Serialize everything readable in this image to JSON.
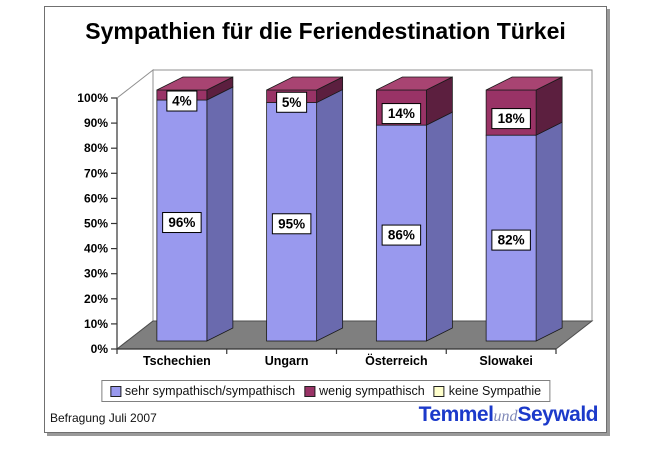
{
  "slide": {
    "title": "Sympathien für die Feriendestination Türkei",
    "footer_note": "Befragung Juli 2007",
    "logo": {
      "part1": "Temmel",
      "part2": "und",
      "part3": "Seywald"
    }
  },
  "chart_data": {
    "type": "bar",
    "subtype": "stacked-column-3d",
    "title": "Sympathien für die Feriendestination Türkei",
    "categories": [
      "Tschechien",
      "Ungarn",
      "Österreich",
      "Slowakei"
    ],
    "series": [
      {
        "name": "sehr sympathisch/sympathisch",
        "values": [
          96,
          95,
          86,
          82
        ],
        "color": "#9999EE"
      },
      {
        "name": "wenig sympathisch",
        "values": [
          4,
          5,
          14,
          18
        ],
        "color": "#993366"
      },
      {
        "name": "keine Sympathie",
        "values": [
          0,
          0,
          0,
          0
        ],
        "color": "#FFFFCC"
      }
    ],
    "xlabel": "",
    "ylabel": "",
    "ylim": [
      0,
      100
    ],
    "ytick_step": 10,
    "ytick_suffix": "%",
    "data_label_suffix": "%",
    "grid": false,
    "legend_position": "bottom"
  },
  "colors": {
    "series1_side": "#6A6AAE",
    "series2_side": "#5C1F3F",
    "series2_top": "#A84472",
    "floor": "#7F7F7F",
    "floor_edge": "#4d4d4d",
    "wall_border": "#909090",
    "axis": "#333333",
    "bar_outline": "#1a1a1a",
    "label_box_border": "#000000",
    "logo_blue": "#1C3ACA",
    "logo_und": "#8089B8",
    "frame_border": "#707070",
    "frame_shadow": "#9a9a9a"
  }
}
